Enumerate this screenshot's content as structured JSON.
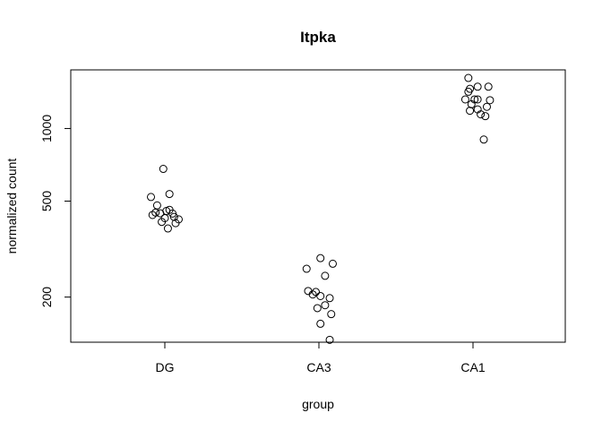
{
  "chart_data": {
    "type": "scatter",
    "title": "Itpka",
    "xlabel": "group",
    "ylabel": "normalized count",
    "y_scale": "log",
    "ylim": [
      130,
      1750
    ],
    "grid": false,
    "legend": "none",
    "categories": [
      "DG",
      "CA3",
      "CA1"
    ],
    "y_ticks": [
      200,
      500,
      1000
    ],
    "y_tick_labels": [
      "200",
      "500",
      "1000"
    ],
    "series": [
      {
        "category": "DG",
        "points": [
          {
            "offset": -0.01,
            "y": 680
          },
          {
            "offset": -0.09,
            "y": 520
          },
          {
            "offset": 0.03,
            "y": 535
          },
          {
            "offset": -0.05,
            "y": 480
          },
          {
            "offset": 0.03,
            "y": 460
          },
          {
            "offset": 0.01,
            "y": 455
          },
          {
            "offset": -0.06,
            "y": 448
          },
          {
            "offset": -0.03,
            "y": 445
          },
          {
            "offset": 0.05,
            "y": 444
          },
          {
            "offset": -0.08,
            "y": 438
          },
          {
            "offset": 0.06,
            "y": 430
          },
          {
            "offset": 0.0,
            "y": 425
          },
          {
            "offset": 0.09,
            "y": 420
          },
          {
            "offset": -0.02,
            "y": 410
          },
          {
            "offset": 0.07,
            "y": 405
          },
          {
            "offset": 0.02,
            "y": 385
          }
        ]
      },
      {
        "category": "CA3",
        "points": [
          {
            "offset": 0.01,
            "y": 290
          },
          {
            "offset": 0.09,
            "y": 275
          },
          {
            "offset": -0.08,
            "y": 262
          },
          {
            "offset": 0.04,
            "y": 245
          },
          {
            "offset": -0.07,
            "y": 212
          },
          {
            "offset": -0.02,
            "y": 210
          },
          {
            "offset": -0.04,
            "y": 205
          },
          {
            "offset": 0.01,
            "y": 202
          },
          {
            "offset": 0.07,
            "y": 198
          },
          {
            "offset": 0.04,
            "y": 185
          },
          {
            "offset": -0.01,
            "y": 180
          },
          {
            "offset": 0.08,
            "y": 170
          },
          {
            "offset": 0.01,
            "y": 155
          },
          {
            "offset": 0.07,
            "y": 133
          }
        ]
      },
      {
        "category": "CA1",
        "points": [
          {
            "offset": -0.03,
            "y": 1620
          },
          {
            "offset": 0.03,
            "y": 1490
          },
          {
            "offset": 0.1,
            "y": 1490
          },
          {
            "offset": -0.02,
            "y": 1460
          },
          {
            "offset": -0.03,
            "y": 1420
          },
          {
            "offset": -0.05,
            "y": 1320
          },
          {
            "offset": 0.01,
            "y": 1320
          },
          {
            "offset": 0.03,
            "y": 1320
          },
          {
            "offset": 0.11,
            "y": 1310
          },
          {
            "offset": -0.01,
            "y": 1260
          },
          {
            "offset": 0.09,
            "y": 1230
          },
          {
            "offset": 0.03,
            "y": 1200
          },
          {
            "offset": -0.02,
            "y": 1185
          },
          {
            "offset": 0.05,
            "y": 1145
          },
          {
            "offset": 0.08,
            "y": 1125
          },
          {
            "offset": 0.07,
            "y": 900
          }
        ]
      }
    ]
  }
}
